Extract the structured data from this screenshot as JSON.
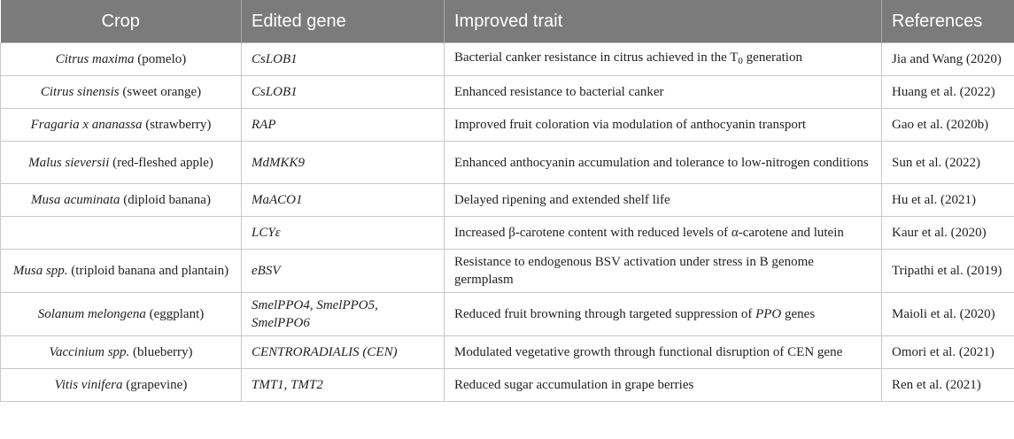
{
  "headers": {
    "crop": "Crop",
    "gene": "Edited gene",
    "trait": "Improved trait",
    "refs": "References"
  },
  "rows": [
    {
      "crop_sci": "Citrus maxima",
      "crop_common": " (pomelo)",
      "gene": "CsLOB1",
      "trait": "Bacterial canker resistance in citrus achieved in the T",
      "trait_sub": "0",
      "trait_suffix": " generation",
      "ref": "Jia and Wang (2020)"
    },
    {
      "crop_sci": "Citrus sinensis",
      "crop_common": " (sweet orange)",
      "gene": "CsLOB1",
      "trait": "Enhanced resistance to bacterial canker",
      "ref": "Huang et al. (2022)"
    },
    {
      "crop_sci": "Fragaria x ananassa",
      "crop_common": " (strawberry)",
      "gene": "RAP",
      "trait": "Improved fruit coloration via modulation of anthocyanin transport",
      "ref": "Gao et al. (2020b)"
    },
    {
      "crop_sci": "Malus sieversii",
      "crop_common": " (red-fleshed apple)",
      "gene": "MdMKK9",
      "trait": "Enhanced anthocyanin accumulation and tolerance to low-nitrogen conditions",
      "ref": "Sun et al. (2022)"
    },
    {
      "crop_sci": "Musa acuminata",
      "crop_common": " (diploid banana)",
      "gene": "MaACO1",
      "trait": "Delayed ripening and extended shelf life",
      "ref": "Hu et al. (2021)"
    },
    {
      "crop_sci": "",
      "crop_common": "",
      "gene": "LCYε",
      "trait": "Increased β-carotene content with reduced levels of α-carotene and lutein",
      "ref": "Kaur et al. (2020)"
    },
    {
      "crop_sci": "Musa spp.",
      "crop_common": " (triploid banana and plantain)",
      "gene": "eBSV",
      "trait": "Resistance to endogenous BSV activation under stress in B genome germplasm",
      "ref": "Tripathi et al. (2019)"
    },
    {
      "crop_sci": "Solanum melongena",
      "crop_common": " (eggplant)",
      "gene": "SmelPPO4, SmelPPO5, SmelPPO6",
      "trait": "Reduced fruit browning through targeted suppression of ",
      "trait_italic": "PPO",
      "trait_suffix": " genes",
      "ref": "Maioli et al. (2020)"
    },
    {
      "crop_sci": "Vaccinium spp.",
      "crop_common": " (blueberry)",
      "gene": "CENTRORADIALIS (CEN)",
      "trait": "Modulated vegetative growth through functional disruption of CEN gene",
      "ref": "Omori et al. (2021)"
    },
    {
      "crop_sci": "Vitis vinifera",
      "crop_common": " (grapevine)",
      "gene": "TMT1, TMT2",
      "trait": "Reduced sugar accumulation in grape berries",
      "ref": "Ren et al. (2021)"
    }
  ]
}
